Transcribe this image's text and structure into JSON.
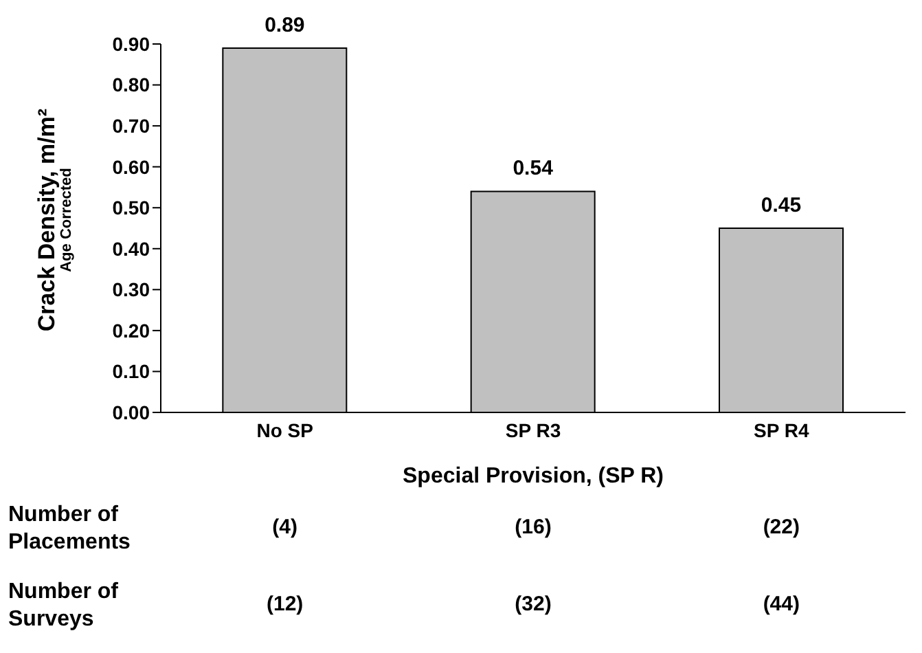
{
  "chart_data": {
    "type": "bar",
    "categories": [
      "No SP",
      "SP R3",
      "SP R4"
    ],
    "values": [
      0.89,
      0.54,
      0.45
    ],
    "color": "#c0c0c0",
    "data_labels": true,
    "ylabel": "Crack Density, m/m²\nAge Corrected",
    "xlabel": "Special Provision, (SP R)",
    "ylim": [
      0,
      0.9
    ],
    "yticks": [
      {
        "value": 0,
        "label": "0.00"
      },
      {
        "value": 0.1,
        "label": "0.10"
      },
      {
        "value": 0.2,
        "label": "0.20"
      },
      {
        "value": 0.3,
        "label": "0.30"
      },
      {
        "value": 0.4,
        "label": "0.40"
      },
      {
        "value": 0.5,
        "label": "0.50"
      },
      {
        "value": 0.6,
        "label": "0.60"
      },
      {
        "value": 0.7,
        "label": "0.70"
      },
      {
        "value": 0.8,
        "label": "0.80"
      },
      {
        "value": 0.9,
        "label": "0.90"
      }
    ],
    "grid": false,
    "legend": false,
    "annotations": [
      "Number of\nPlacements",
      "(4)",
      "(16)",
      "(22)",
      "Number of\nSurveys",
      "(12)",
      "(32)",
      "(44)"
    ]
  }
}
